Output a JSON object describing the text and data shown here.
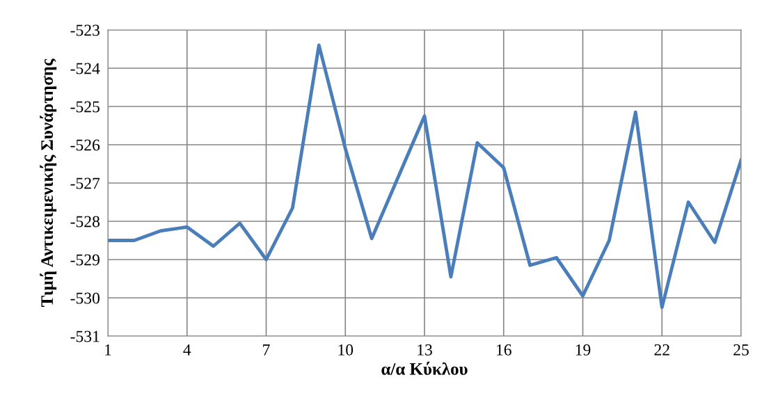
{
  "chart_data": {
    "type": "line",
    "xlabel": "α/α Κύκλου",
    "ylabel": "Τιμή Αντικειμενικής Συνάρτησης",
    "x": [
      1,
      2,
      3,
      4,
      5,
      6,
      7,
      8,
      9,
      10,
      11,
      12,
      13,
      14,
      15,
      16,
      17,
      18,
      19,
      20,
      21,
      22,
      23,
      24,
      25
    ],
    "series": [
      {
        "color": "#4a7ebb",
        "values": [
          -528.5,
          -528.5,
          -528.25,
          -528.15,
          -528.65,
          -528.05,
          -529.0,
          -527.65,
          -523.4,
          -526.1,
          -528.45,
          -526.85,
          -525.25,
          -529.45,
          -525.95,
          -526.6,
          -529.15,
          -528.95,
          -529.95,
          -528.5,
          -525.15,
          -530.25,
          -527.5,
          -528.55,
          -526.4
        ]
      }
    ],
    "xlim": [
      1,
      25
    ],
    "xticks": [
      1,
      4,
      7,
      10,
      13,
      16,
      19,
      22,
      25
    ],
    "ylim": [
      -531,
      -523
    ],
    "yticks": [
      -531,
      -530,
      -529,
      -528,
      -527,
      -526,
      -525,
      -524,
      -523
    ],
    "grid": true,
    "marker": "none",
    "line_style": "solid"
  }
}
